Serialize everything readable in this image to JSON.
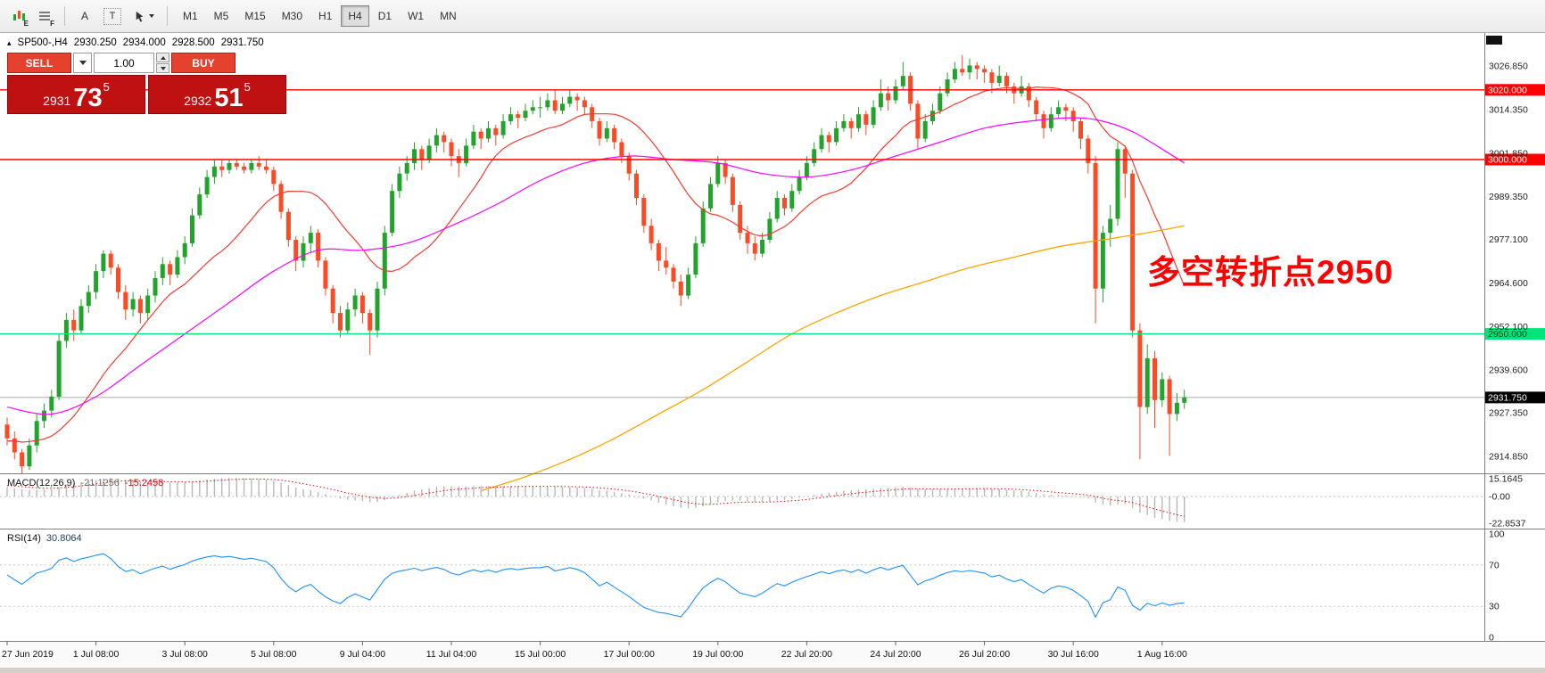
{
  "toolbar": {
    "icon1_badge": "E",
    "icon2_badge": "F",
    "a_label": "A",
    "t_label": "T",
    "timeframes": [
      {
        "label": "M1"
      },
      {
        "label": "M5"
      },
      {
        "label": "M15"
      },
      {
        "label": "M30"
      },
      {
        "label": "H1"
      },
      {
        "label": "H4",
        "active": true
      },
      {
        "label": "D1"
      },
      {
        "label": "W1"
      },
      {
        "label": "MN"
      }
    ]
  },
  "symbol_header": {
    "marker": "▴",
    "symbol": "SP500-,H4",
    "open": "2930.250",
    "high": "2934.000",
    "low": "2928.500",
    "close": "2931.750"
  },
  "trade_widget": {
    "sell_label": "SELL",
    "buy_label": "BUY",
    "volume": "1.00",
    "bid_small": "2931",
    "bid_big": "73",
    "bid_sup": "5",
    "ask_small": "2932",
    "ask_big": "51",
    "ask_sup": "5"
  },
  "annotation": {
    "text": "多空转折点2950",
    "color": "#ff0000"
  },
  "price_axis": {
    "ticks": [
      "3026.850",
      "3014.350",
      "3001.850",
      "2989.350",
      "2977.100",
      "2964.600",
      "2952.100",
      "2939.600",
      "2927.350",
      "2914.850"
    ]
  },
  "hlines": [
    {
      "price": 3020.0,
      "label": "3020.000",
      "color": "#ff0000",
      "text_color": "#ffffff"
    },
    {
      "price": 3000.0,
      "label": "3000.000",
      "color": "#ff0000",
      "text_color": "#ffffff"
    },
    {
      "price": 2950.0,
      "label": "2950.000",
      "color": "#00e57b",
      "text_color": "#103822"
    }
  ],
  "current_price": {
    "value": 2931.75,
    "label": "2931.750",
    "bg": "#000000",
    "text_color": "#ffffff"
  },
  "macd": {
    "label": "MACD(12,26,9)",
    "value_main": "-21.1256",
    "value_signal": "-15.2458",
    "ticks": [
      "15.1645",
      "-0.00",
      "-22.8537"
    ],
    "tick_values": [
      15.1645,
      0,
      -22.8537
    ]
  },
  "rsi": {
    "label": "RSI(14)",
    "value": "30.8064",
    "ticks": [
      "100",
      "70",
      "30",
      "0"
    ],
    "levels": [
      70,
      30
    ]
  },
  "time_axis": {
    "labels": [
      "27 Jun 2019",
      "1 Jul 08:00",
      "3 Jul 08:00",
      "5 Jul 08:00",
      "9 Jul 04:00",
      "11 Jul 04:00",
      "15 Jul 00:00",
      "17 Jul 00:00",
      "19 Jul 00:00",
      "22 Jul 20:00",
      "24 Jul 20:00",
      "26 Jul 20:00",
      "30 Jul 16:00",
      "1 Aug 16:00"
    ],
    "bar_indices": [
      0,
      12,
      24,
      36,
      48,
      60,
      72,
      84,
      96,
      108,
      120,
      132,
      144,
      156
    ]
  },
  "chart_data": {
    "type": "candlestick",
    "symbol": "SP500-",
    "timeframe": "H4",
    "title": "SP500-,H4 2930.250 2934.000 2928.500 2931.750",
    "price_range": [
      2910,
      3036
    ],
    "ohlc": [
      [
        2924,
        2926,
        2918,
        2920
      ],
      [
        2920,
        2922,
        2914,
        2916
      ],
      [
        2916,
        2917,
        2910,
        2912
      ],
      [
        2912,
        2920,
        2911,
        2918
      ],
      [
        2918,
        2927,
        2916,
        2925
      ],
      [
        2925,
        2930,
        2923,
        2928
      ],
      [
        2928,
        2934,
        2926,
        2932
      ],
      [
        2932,
        2950,
        2931,
        2948
      ],
      [
        2948,
        2956,
        2946,
        2954
      ],
      [
        2954,
        2957,
        2948,
        2951
      ],
      [
        2951,
        2960,
        2950,
        2958
      ],
      [
        2958,
        2964,
        2956,
        2962
      ],
      [
        2962,
        2970,
        2960,
        2968
      ],
      [
        2968,
        2974,
        2966,
        2973
      ],
      [
        2973,
        2974,
        2967,
        2969
      ],
      [
        2969,
        2970,
        2960,
        2962
      ],
      [
        2962,
        2964,
        2954,
        2957
      ],
      [
        2957,
        2962,
        2955,
        2960
      ],
      [
        2960,
        2961,
        2953,
        2956
      ],
      [
        2956,
        2963,
        2954,
        2961
      ],
      [
        2961,
        2968,
        2959,
        2966
      ],
      [
        2966,
        2972,
        2964,
        2970
      ],
      [
        2970,
        2971,
        2964,
        2967
      ],
      [
        2967,
        2974,
        2966,
        2972
      ],
      [
        2972,
        2978,
        2970,
        2976
      ],
      [
        2976,
        2986,
        2975,
        2984
      ],
      [
        2984,
        2992,
        2983,
        2990
      ],
      [
        2990,
        2997,
        2989,
        2995
      ],
      [
        2995,
        3000,
        2993,
        2998
      ],
      [
        2998,
        3000,
        2995,
        2997
      ],
      [
        2997,
        3000,
        2996,
        2999
      ],
      [
        2999,
        3000,
        2997,
        2998
      ],
      [
        2998,
        2999,
        2996,
        2997
      ],
      [
        2997,
        3000,
        2996,
        2999
      ],
      [
        2999,
        3001,
        2997,
        2998
      ],
      [
        2998,
        3000,
        2996,
        2997
      ],
      [
        2997,
        2998,
        2991,
        2993
      ],
      [
        2993,
        2994,
        2983,
        2985
      ],
      [
        2985,
        2986,
        2975,
        2977
      ],
      [
        2977,
        2978,
        2968,
        2971
      ],
      [
        2971,
        2978,
        2969,
        2976
      ],
      [
        2976,
        2981,
        2973,
        2979
      ],
      [
        2979,
        2980,
        2969,
        2971
      ],
      [
        2971,
        2972,
        2961,
        2963
      ],
      [
        2963,
        2964,
        2953,
        2956
      ],
      [
        2956,
        2958,
        2949,
        2951
      ],
      [
        2951,
        2959,
        2950,
        2957
      ],
      [
        2957,
        2963,
        2955,
        2961
      ],
      [
        2961,
        2962,
        2953,
        2956
      ],
      [
        2956,
        2957,
        2944,
        2951
      ],
      [
        2951,
        2965,
        2949,
        2963
      ],
      [
        2963,
        2981,
        2961,
        2979
      ],
      [
        2979,
        2993,
        2978,
        2991
      ],
      [
        2991,
        2998,
        2989,
        2996
      ],
      [
        2996,
        3001,
        2994,
        2999
      ],
      [
        2999,
        3005,
        2997,
        3003
      ],
      [
        3003,
        3004,
        2997,
        3000
      ],
      [
        3000,
        3006,
        2999,
        3004
      ],
      [
        3004,
        3009,
        3002,
        3007
      ],
      [
        3007,
        3008,
        3002,
        3005
      ],
      [
        3005,
        3006,
        2998,
        3001
      ],
      [
        3001,
        3003,
        2995,
        2999
      ],
      [
        2999,
        3006,
        2998,
        3004
      ],
      [
        3004,
        3010,
        3003,
        3008
      ],
      [
        3008,
        3009,
        3003,
        3006
      ],
      [
        3006,
        3011,
        3005,
        3009
      ],
      [
        3009,
        3010,
        3004,
        3007
      ],
      [
        3007,
        3013,
        3006,
        3011
      ],
      [
        3011,
        3015,
        3010,
        3013
      ],
      [
        3013,
        3014,
        3009,
        3012
      ],
      [
        3012,
        3016,
        3011,
        3014
      ],
      [
        3014,
        3017,
        3013,
        3015
      ],
      [
        3015,
        3018,
        3012,
        3015
      ],
      [
        3015,
        3019,
        3014,
        3017
      ],
      [
        3017,
        3020,
        3013,
        3014
      ],
      [
        3014,
        3018,
        3013,
        3016
      ],
      [
        3016,
        3020,
        3015,
        3018
      ],
      [
        3018,
        3019,
        3014,
        3017
      ],
      [
        3017,
        3018,
        3013,
        3015
      ],
      [
        3015,
        3016,
        3009,
        3011
      ],
      [
        3011,
        3012,
        3004,
        3006
      ],
      [
        3006,
        3011,
        3005,
        3009
      ],
      [
        3009,
        3010,
        3003,
        3005
      ],
      [
        3005,
        3006,
        2999,
        3001
      ],
      [
        3001,
        3002,
        2994,
        2996
      ],
      [
        2996,
        2997,
        2987,
        2989
      ],
      [
        2989,
        2990,
        2979,
        2981
      ],
      [
        2981,
        2983,
        2974,
        2976
      ],
      [
        2976,
        2977,
        2968,
        2971
      ],
      [
        2971,
        2975,
        2967,
        2969
      ],
      [
        2969,
        2970,
        2963,
        2965
      ],
      [
        2965,
        2967,
        2958,
        2961
      ],
      [
        2961,
        2969,
        2960,
        2967
      ],
      [
        2967,
        2978,
        2966,
        2976
      ],
      [
        2976,
        2988,
        2975,
        2986
      ],
      [
        2986,
        2995,
        2985,
        2993
      ],
      [
        2993,
        3001,
        2992,
        2999
      ],
      [
        2999,
        3000,
        2993,
        2995
      ],
      [
        2995,
        2996,
        2985,
        2987
      ],
      [
        2987,
        2988,
        2977,
        2979
      ],
      [
        2979,
        2981,
        2973,
        2976
      ],
      [
        2976,
        2978,
        2971,
        2973
      ],
      [
        2973,
        2979,
        2972,
        2977
      ],
      [
        2977,
        2985,
        2976,
        2983
      ],
      [
        2983,
        2991,
        2982,
        2989
      ],
      [
        2989,
        2990,
        2984,
        2986
      ],
      [
        2986,
        2993,
        2985,
        2991
      ],
      [
        2991,
        2997,
        2990,
        2995
      ],
      [
        2995,
        3001,
        2994,
        2999
      ],
      [
        2999,
        3005,
        2998,
        3003
      ],
      [
        3003,
        3009,
        3002,
        3007
      ],
      [
        3007,
        3008,
        3002,
        3005
      ],
      [
        3005,
        3011,
        3004,
        3009
      ],
      [
        3009,
        3013,
        3008,
        3011
      ],
      [
        3011,
        3012,
        3006,
        3009
      ],
      [
        3009,
        3015,
        3008,
        3013
      ],
      [
        3013,
        3014,
        3007,
        3010
      ],
      [
        3010,
        3017,
        3009,
        3015
      ],
      [
        3015,
        3023,
        3014,
        3019
      ],
      [
        3019,
        3021,
        3014,
        3017
      ],
      [
        3017,
        3023,
        3016,
        3021
      ],
      [
        3021,
        3028,
        3020,
        3024
      ],
      [
        3024,
        3025,
        3014,
        3016
      ],
      [
        3016,
        3017,
        3003,
        3006
      ],
      [
        3006,
        3013,
        3005,
        3011
      ],
      [
        3011,
        3016,
        3010,
        3014
      ],
      [
        3014,
        3021,
        3013,
        3019
      ],
      [
        3019,
        3025,
        3018,
        3023
      ],
      [
        3023,
        3028,
        3022,
        3026
      ],
      [
        3026,
        3030,
        3024,
        3025
      ],
      [
        3025,
        3029,
        3023,
        3027
      ],
      [
        3027,
        3028,
        3023,
        3026
      ],
      [
        3026,
        3027,
        3022,
        3025
      ],
      [
        3025,
        3026,
        3019,
        3022
      ],
      [
        3022,
        3027,
        3021,
        3024
      ],
      [
        3024,
        3025,
        3019,
        3021
      ],
      [
        3021,
        3022,
        3016,
        3019
      ],
      [
        3019,
        3024,
        3018,
        3021
      ],
      [
        3021,
        3022,
        3015,
        3017
      ],
      [
        3017,
        3018,
        3011,
        3013
      ],
      [
        3013,
        3014,
        3006,
        3009
      ],
      [
        3009,
        3015,
        3008,
        3013
      ],
      [
        3013,
        3017,
        3012,
        3015
      ],
      [
        3015,
        3016,
        3011,
        3014
      ],
      [
        3014,
        3015,
        3008,
        3011
      ],
      [
        3011,
        3012,
        3003,
        3006
      ],
      [
        3006,
        3007,
        2996,
        2999
      ],
      [
        2999,
        3001,
        2953,
        2963
      ],
      [
        2963,
        2981,
        2959,
        2979
      ],
      [
        2979,
        2987,
        2975,
        2983
      ],
      [
        2983,
        3005,
        2981,
        3003
      ],
      [
        3003,
        3004,
        2989,
        2996
      ],
      [
        2996,
        2997,
        2949,
        2951
      ],
      [
        2951,
        2953,
        2914,
        2929
      ],
      [
        2929,
        2947,
        2927,
        2943
      ],
      [
        2943,
        2945,
        2923,
        2931
      ],
      [
        2931,
        2939,
        2929,
        2937
      ],
      [
        2937,
        2938,
        2915,
        2927
      ],
      [
        2927,
        2933,
        2925,
        2930.25
      ],
      [
        2930.25,
        2934,
        2928.5,
        2931.75
      ]
    ],
    "warmup_closes": [
      2810,
      2814,
      2811,
      2817,
      2819,
      2816,
      2822,
      2825,
      2821,
      2828,
      2830,
      2827,
      2833,
      2836,
      2832,
      2839,
      2841,
      2838,
      2844,
      2847,
      2843,
      2850,
      2852,
      2849,
      2855,
      2858,
      2854,
      2861,
      2863,
      2860,
      2866,
      2869,
      2865,
      2872,
      2874,
      2871,
      2877,
      2880,
      2876,
      2883,
      2885,
      2882,
      2888,
      2891,
      2887,
      2894,
      2896,
      2893,
      2899,
      2902,
      2898,
      2905,
      2907,
      2904,
      2910,
      2913,
      2909,
      2916,
      2918,
      2915,
      2920,
      2922,
      2918,
      2924,
      2921,
      2917,
      2913,
      2916,
      2919,
      2922,
      2925,
      2923
    ],
    "ma_fast_period": 16,
    "ma_mid_points": [
      [
        0,
        2929
      ],
      [
        6,
        2927
      ],
      [
        12,
        2932
      ],
      [
        18,
        2941
      ],
      [
        24,
        2950
      ],
      [
        30,
        2959
      ],
      [
        36,
        2968
      ],
      [
        42,
        2974
      ],
      [
        48,
        2974
      ],
      [
        54,
        2976
      ],
      [
        60,
        2981
      ],
      [
        66,
        2987
      ],
      [
        72,
        2994
      ],
      [
        78,
        2999
      ],
      [
        84,
        3001
      ],
      [
        90,
        3000
      ],
      [
        96,
        2999
      ],
      [
        102,
        2996
      ],
      [
        108,
        2995
      ],
      [
        114,
        2997
      ],
      [
        120,
        3001
      ],
      [
        126,
        3005
      ],
      [
        132,
        3009
      ],
      [
        138,
        3011
      ],
      [
        144,
        3012
      ],
      [
        148,
        3011
      ],
      [
        152,
        3008
      ],
      [
        156,
        3003
      ],
      [
        159,
        2999
      ]
    ],
    "ma_slow_points": [
      [
        64,
        2905
      ],
      [
        70,
        2909
      ],
      [
        76,
        2914
      ],
      [
        82,
        2920
      ],
      [
        88,
        2927
      ],
      [
        94,
        2934
      ],
      [
        100,
        2942
      ],
      [
        106,
        2950
      ],
      [
        112,
        2956
      ],
      [
        118,
        2961
      ],
      [
        124,
        2965
      ],
      [
        130,
        2969
      ],
      [
        136,
        2972
      ],
      [
        142,
        2975
      ],
      [
        148,
        2977
      ],
      [
        154,
        2979
      ],
      [
        159,
        2981
      ]
    ],
    "colors": {
      "up": "#22a42c",
      "down": "#fb4a24",
      "ma_fast": "#f8392e",
      "ma_mid": "#ff00ff",
      "ma_slow": "#ffa500",
      "hline_red": "#ff0000",
      "hline_green": "#00e57b",
      "rsi": "#1e90ff",
      "macd_signal": "#ff0000",
      "macd_hist": "#b8b8b8"
    }
  }
}
